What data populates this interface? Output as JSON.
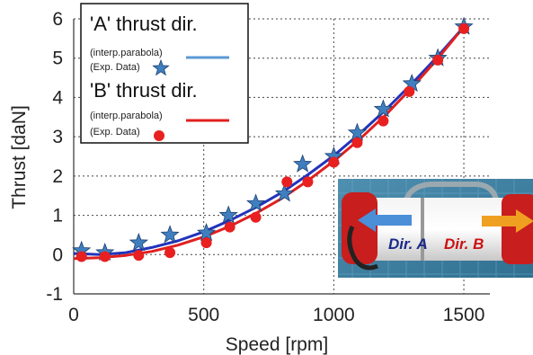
{
  "chart_data": {
    "type": "line",
    "title": "",
    "xlabel": "Speed [rpm]",
    "ylabel": "Thrust [daN]",
    "xlim": [
      0,
      1600
    ],
    "ylim": [
      -1,
      6
    ],
    "x_ticks": [
      "0",
      "500",
      "1000",
      "1500"
    ],
    "y_ticks": [
      "-1",
      "0",
      "1",
      "2",
      "3",
      "4",
      "5",
      "6"
    ],
    "grid": true,
    "legend_position": "top-left",
    "series": [
      {
        "name": "'A' thrust dir.",
        "color": "#2233bb",
        "marker_color": "#3f7fbf",
        "fit_label": "(interp.parabola)",
        "data_label": "(Exp. Data)",
        "fit": {
          "type": "parabola",
          "x": [
            0,
            100,
            200,
            300,
            400,
            500,
            600,
            700,
            800,
            900,
            1000,
            1100,
            1200,
            1300,
            1400,
            1500
          ],
          "y": [
            0.03,
            0.0,
            0.05,
            0.18,
            0.35,
            0.58,
            0.87,
            1.2,
            1.58,
            2.03,
            2.52,
            3.08,
            3.69,
            4.35,
            5.05,
            5.8
          ]
        },
        "points": {
          "x": [
            30,
            120,
            250,
            370,
            510,
            595,
            700,
            810,
            880,
            1000,
            1090,
            1190,
            1300,
            1400,
            1500
          ],
          "y": [
            0.1,
            0.05,
            0.3,
            0.5,
            0.55,
            1.0,
            1.3,
            1.55,
            2.3,
            2.5,
            3.1,
            3.7,
            4.35,
            5.0,
            5.8
          ]
        }
      },
      {
        "name": "'B' thrust dir.",
        "color": "#e02020",
        "marker_color": "#e82020",
        "fit_label": "(interp.parabola)",
        "data_label": "(Exp. Data)",
        "fit": {
          "type": "parabola",
          "x": [
            0,
            100,
            200,
            300,
            400,
            500,
            600,
            700,
            800,
            900,
            1000,
            1100,
            1200,
            1300,
            1400,
            1500
          ],
          "y": [
            -0.1,
            -0.08,
            -0.02,
            0.08,
            0.24,
            0.45,
            0.72,
            1.05,
            1.43,
            1.88,
            2.38,
            2.94,
            3.56,
            4.25,
            4.99,
            5.8
          ]
        },
        "points": {
          "x": [
            30,
            120,
            250,
            370,
            510,
            600,
            700,
            820,
            900,
            1000,
            1090,
            1190,
            1290,
            1400,
            1500
          ],
          "y": [
            -0.05,
            -0.05,
            -0.02,
            0.05,
            0.3,
            0.7,
            0.95,
            1.85,
            1.85,
            2.35,
            2.85,
            3.4,
            4.15,
            4.95,
            5.75
          ]
        }
      }
    ]
  },
  "inset": {
    "label_a": "Dir. A",
    "label_b": "Dir. B",
    "color_a": "#1a2a8a",
    "color_b": "#cc1111",
    "arrow_a_color": "#4a8fd8",
    "arrow_b_color": "#f0a020",
    "arrow_a_icon": "arrow-left-icon",
    "arrow_b_icon": "arrow-right-icon"
  }
}
